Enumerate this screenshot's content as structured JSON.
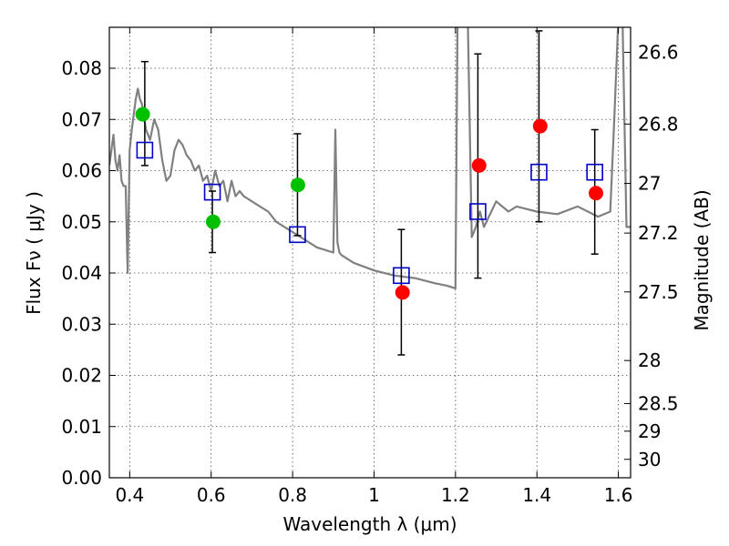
{
  "chart_data": {
    "type": "scatter",
    "title": "",
    "xlabel": "Wavelength  λ (μm)",
    "ylabel": "Flux  Fν  ( μJy )",
    "ylabel_right": "Magnitude (AB)",
    "xlim": [
      0.35,
      1.63
    ],
    "ylim": [
      0.0,
      0.088
    ],
    "grid": true,
    "x_ticks": [
      0.4,
      0.6,
      0.8,
      1.0,
      1.2,
      1.4,
      1.6
    ],
    "x_tick_labels": [
      "0.4",
      "0.6",
      "0.8",
      "1",
      "1.2",
      "1.4",
      "1.6"
    ],
    "y_ticks": [
      0.0,
      0.01,
      0.02,
      0.03,
      0.04,
      0.05,
      0.06,
      0.07,
      0.08
    ],
    "y_tick_labels": [
      "0.00",
      "0.01",
      "0.02",
      "0.03",
      "0.04",
      "0.05",
      "0.06",
      "0.07",
      "0.08"
    ],
    "right_ticks": [
      {
        "label": "26.6",
        "flux": 0.0831
      },
      {
        "label": "26.8",
        "flux": 0.0691
      },
      {
        "label": "27",
        "flux": 0.0575
      },
      {
        "label": "27.2",
        "flux": 0.0478
      },
      {
        "label": "27.5",
        "flux": 0.0363
      },
      {
        "label": "28",
        "flux": 0.0229
      },
      {
        "label": "28.5",
        "flux": 0.0145
      },
      {
        "label": "29",
        "flux": 0.0091
      },
      {
        "label": "30",
        "flux": 0.0036
      }
    ],
    "colors": {
      "model": "#808080",
      "green": "#00c000",
      "red": "#ff0000",
      "square": "#0000c8",
      "errorbar": "#000000"
    },
    "series": [
      {
        "kind": "line",
        "x": [
          0.35,
          0.36,
          0.365,
          0.37,
          0.375,
          0.38,
          0.385,
          0.39,
          0.395,
          0.4,
          0.405,
          0.41,
          0.415,
          0.42,
          0.425,
          0.43,
          0.44,
          0.45,
          0.46,
          0.47,
          0.48,
          0.49,
          0.5,
          0.51,
          0.52,
          0.53,
          0.54,
          0.55,
          0.56,
          0.57,
          0.58,
          0.59,
          0.6,
          0.61,
          0.62,
          0.63,
          0.64,
          0.65,
          0.66,
          0.67,
          0.68,
          0.7,
          0.72,
          0.74,
          0.76,
          0.78,
          0.8,
          0.82,
          0.84,
          0.86,
          0.88,
          0.9,
          0.905,
          0.91,
          0.915,
          0.92,
          0.95,
          1.0,
          1.05,
          1.1,
          1.15,
          1.18,
          1.2,
          1.205,
          1.21,
          1.22,
          1.23,
          1.24,
          1.25,
          1.26,
          1.27,
          1.3,
          1.33,
          1.35,
          1.4,
          1.45,
          1.5,
          1.55,
          1.58,
          1.59,
          1.6,
          1.61,
          1.62,
          1.63
        ],
        "y": [
          0.061,
          0.067,
          0.062,
          0.06,
          0.063,
          0.058,
          0.057,
          0.057,
          0.04,
          0.064,
          0.068,
          0.071,
          0.074,
          0.076,
          0.074,
          0.073,
          0.068,
          0.066,
          0.07,
          0.068,
          0.062,
          0.058,
          0.059,
          0.064,
          0.066,
          0.065,
          0.063,
          0.062,
          0.06,
          0.061,
          0.058,
          0.059,
          0.056,
          0.06,
          0.057,
          0.058,
          0.054,
          0.058,
          0.055,
          0.056,
          0.055,
          0.054,
          0.053,
          0.052,
          0.05,
          0.049,
          0.048,
          0.047,
          0.046,
          0.045,
          0.0445,
          0.044,
          0.068,
          0.046,
          0.044,
          0.0435,
          0.042,
          0.0405,
          0.0395,
          0.039,
          0.038,
          0.0375,
          0.037,
          0.09,
          0.09,
          0.09,
          0.09,
          0.047,
          0.049,
          0.052,
          0.049,
          0.054,
          0.052,
          0.053,
          0.052,
          0.0515,
          0.053,
          0.051,
          0.052,
          0.07,
          0.09,
          0.09,
          0.049,
          0.049
        ]
      },
      {
        "kind": "circle",
        "color": "green",
        "x": [
          0.432,
          0.605,
          0.813
        ],
        "y": [
          0.071,
          0.05,
          0.0572
        ]
      },
      {
        "kind": "circle",
        "color": "red",
        "x": [
          1.07,
          1.258,
          1.408,
          1.545
        ],
        "y": [
          0.0362,
          0.061,
          0.0687,
          0.0556
        ]
      },
      {
        "kind": "square",
        "color": "square",
        "x": [
          0.437,
          0.603,
          0.812,
          1.067,
          1.255,
          1.405,
          1.542
        ],
        "y": [
          0.064,
          0.0558,
          0.0475,
          0.0395,
          0.052,
          0.0597,
          0.0597
        ]
      },
      {
        "kind": "errorbar",
        "x": [
          0.437,
          0.603,
          0.812,
          1.067,
          1.255,
          1.405,
          1.542
        ],
        "y_low": [
          0.061,
          0.044,
          0.0473,
          0.024,
          0.039,
          0.05,
          0.0437
        ],
        "y_high": [
          0.0813,
          0.056,
          0.0672,
          0.0485,
          0.0828,
          0.0873,
          0.068
        ]
      }
    ]
  }
}
